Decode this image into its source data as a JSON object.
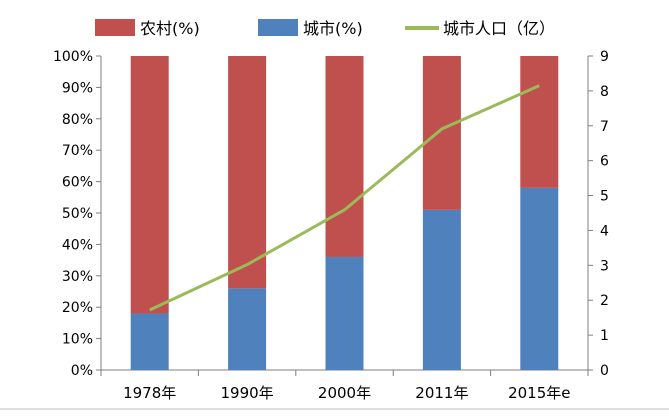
{
  "chart_data": {
    "type": "bar",
    "stacked": true,
    "categories": [
      "1978年",
      "1990年",
      "2000年",
      "2011年",
      "2015年e"
    ],
    "series": [
      {
        "name": "城市(%)",
        "axis": "left",
        "color": "#4f81bd",
        "values": [
          18,
          26,
          36,
          51,
          58
        ]
      },
      {
        "name": "农村(%)",
        "axis": "left",
        "color": "#c0504d",
        "values": [
          82,
          74,
          64,
          49,
          42
        ]
      },
      {
        "name": "城市人口（亿）",
        "axis": "right",
        "kind": "line",
        "color": "#9bbb59",
        "values": [
          1.72,
          3.02,
          4.59,
          6.91,
          8.15
        ]
      }
    ],
    "legend_order": [
      "农村(%)",
      "城市(%)",
      "城市人口（亿）"
    ],
    "legend_placement": "top",
    "left_axis": {
      "ylim": [
        0,
        100
      ],
      "ticks": [
        "0%",
        "10%",
        "20%",
        "30%",
        "40%",
        "50%",
        "60%",
        "70%",
        "80%",
        "90%",
        "100%"
      ]
    },
    "right_axis": {
      "ylim": [
        0,
        9
      ],
      "ticks": [
        "0",
        "1",
        "2",
        "3",
        "4",
        "5",
        "6",
        "7",
        "8",
        "9"
      ]
    },
    "grid": false,
    "title": "",
    "xlabel": "",
    "ylabel": ""
  }
}
